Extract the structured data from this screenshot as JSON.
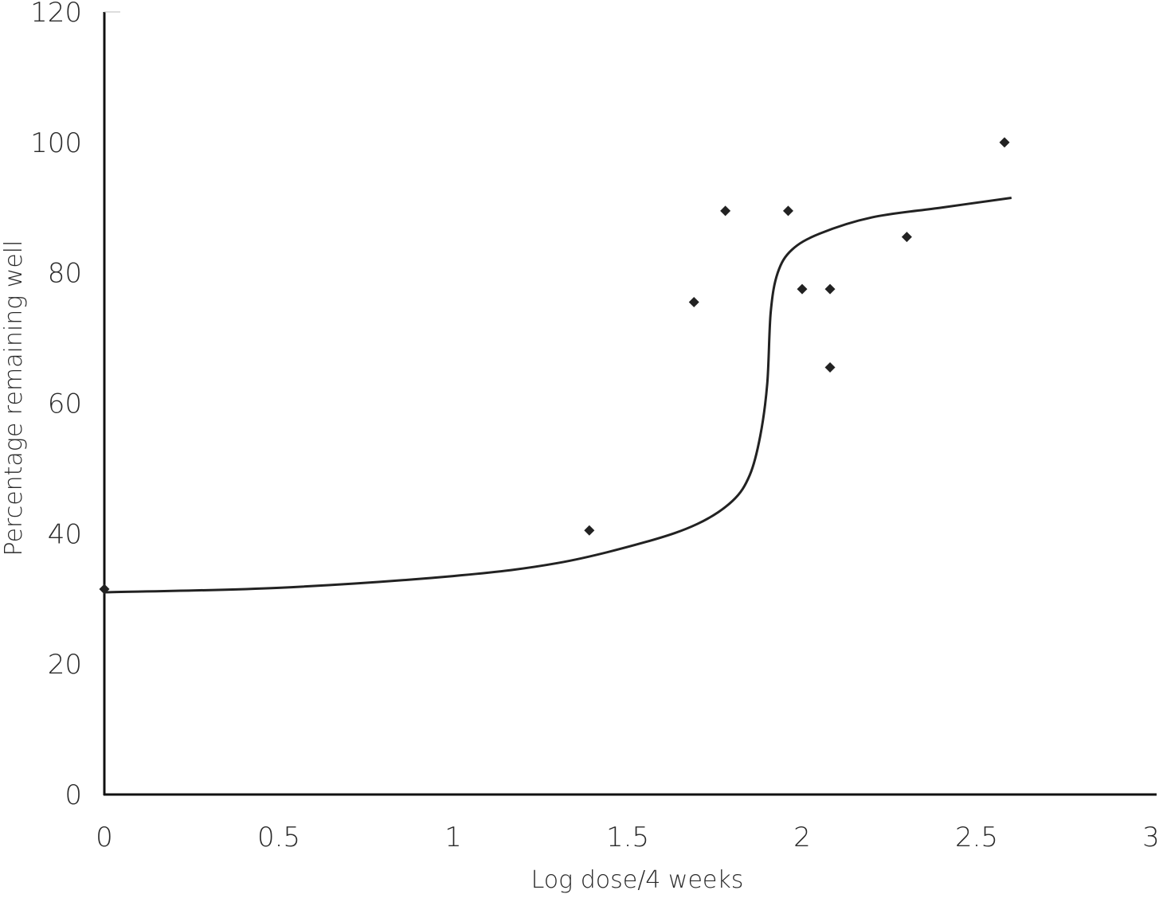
{
  "chart_data": {
    "type": "scatter",
    "title": "",
    "xlabel": "Log dose/4 weeks",
    "ylabel": "Percentage remaining well",
    "xlim": [
      0,
      3
    ],
    "ylim": [
      0,
      120
    ],
    "x_ticks": [
      "0",
      "0.5",
      "1",
      "1.5",
      "2",
      "2.5",
      "3"
    ],
    "y_ticks": [
      "0",
      "20",
      "40",
      "60",
      "80",
      "100",
      "120"
    ],
    "grid": false,
    "legend": "none",
    "series": [
      {
        "type": "scatter",
        "marker": "diamond",
        "color": "#222222",
        "points": [
          {
            "x": 0,
            "y": 31.5
          },
          {
            "x": 1.39,
            "y": 40.5
          },
          {
            "x": 1.69,
            "y": 75.5
          },
          {
            "x": 1.78,
            "y": 89.5
          },
          {
            "x": 1.96,
            "y": 89.5
          },
          {
            "x": 2.0,
            "y": 77.5
          },
          {
            "x": 2.08,
            "y": 77.5
          },
          {
            "x": 2.08,
            "y": 65.5
          },
          {
            "x": 2.3,
            "y": 85.5
          },
          {
            "x": 2.58,
            "y": 100
          }
        ]
      },
      {
        "type": "line",
        "color": "#222222",
        "points": [
          {
            "x": 0,
            "y": 31
          },
          {
            "x": 0.5,
            "y": 31.7
          },
          {
            "x": 1.0,
            "y": 33.5
          },
          {
            "x": 1.3,
            "y": 35.5
          },
          {
            "x": 1.55,
            "y": 38.7
          },
          {
            "x": 1.7,
            "y": 41.5
          },
          {
            "x": 1.8,
            "y": 45
          },
          {
            "x": 1.85,
            "y": 49
          },
          {
            "x": 1.88,
            "y": 55
          },
          {
            "x": 1.9,
            "y": 63
          },
          {
            "x": 1.91,
            "y": 74
          },
          {
            "x": 1.93,
            "y": 80
          },
          {
            "x": 1.97,
            "y": 83.5
          },
          {
            "x": 2.05,
            "y": 86
          },
          {
            "x": 2.2,
            "y": 88.5
          },
          {
            "x": 2.4,
            "y": 90
          },
          {
            "x": 2.6,
            "y": 91.5
          }
        ]
      }
    ]
  }
}
